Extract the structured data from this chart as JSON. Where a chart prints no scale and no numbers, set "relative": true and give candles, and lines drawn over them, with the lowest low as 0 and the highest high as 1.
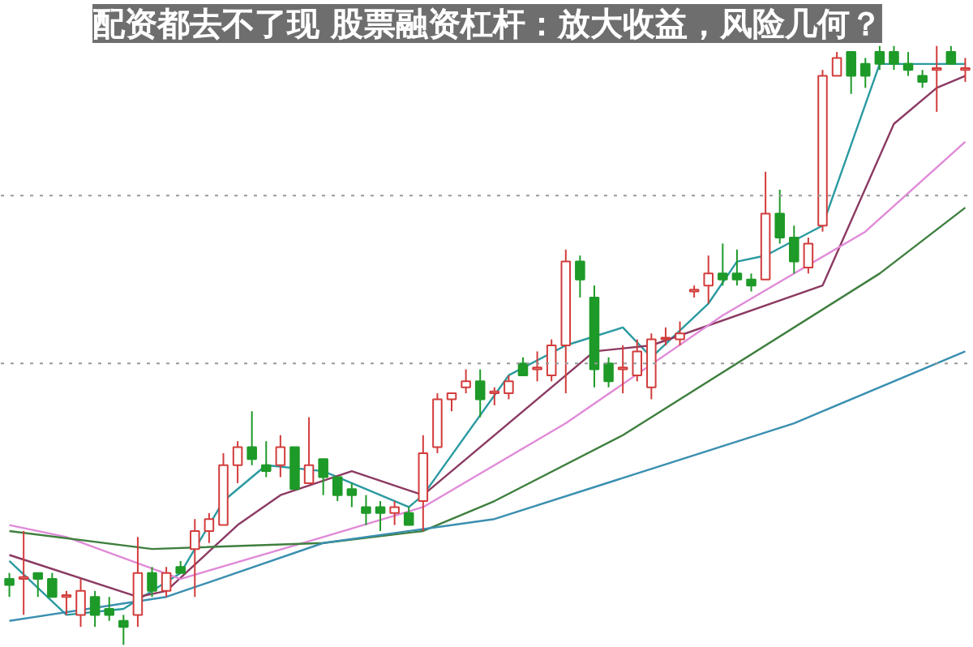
{
  "chart_data": {
    "type": "candlestick",
    "title": "配资都去不了现 股票融资杠杆：放大收益，风险几何？",
    "relative": true,
    "categories": [
      null,
      null,
      null,
      null,
      null,
      null,
      null,
      null,
      null,
      null,
      null,
      null,
      null,
      null,
      null,
      null,
      null,
      null,
      null,
      null,
      null,
      null,
      null,
      null,
      null,
      null,
      null,
      null,
      null,
      null,
      null,
      null,
      null,
      null,
      null,
      null,
      null,
      null,
      null,
      null,
      null,
      null,
      null,
      null,
      null,
      null,
      null,
      null,
      null,
      null,
      null,
      null,
      null,
      null,
      null,
      null,
      null,
      null,
      null,
      null,
      null,
      null,
      null,
      null,
      null,
      null,
      null,
      null
    ],
    "ohlc": [
      [
        0.11,
        0.12,
        0.08,
        0.1
      ],
      [
        0.11,
        0.19,
        0.05,
        0.11
      ],
      [
        0.12,
        0.12,
        0.08,
        0.11
      ],
      [
        0.11,
        0.12,
        0.08,
        0.08
      ],
      [
        0.08,
        0.09,
        0.05,
        0.08
      ],
      [
        0.05,
        0.11,
        0.03,
        0.09
      ],
      [
        0.08,
        0.09,
        0.03,
        0.05
      ],
      [
        0.06,
        0.08,
        0.04,
        0.05
      ],
      [
        0.04,
        0.05,
        0.0,
        0.03
      ],
      [
        0.05,
        0.18,
        0.03,
        0.12
      ],
      [
        0.12,
        0.13,
        0.08,
        0.09
      ],
      [
        0.09,
        0.13,
        0.08,
        0.12
      ],
      [
        0.13,
        0.14,
        0.12,
        0.12
      ],
      [
        0.16,
        0.21,
        0.08,
        0.19
      ],
      [
        0.19,
        0.22,
        0.17,
        0.21
      ],
      [
        0.2,
        0.32,
        0.2,
        0.3
      ],
      [
        0.3,
        0.34,
        0.27,
        0.33
      ],
      [
        0.33,
        0.39,
        0.3,
        0.31
      ],
      [
        0.3,
        0.34,
        0.28,
        0.29
      ],
      [
        0.3,
        0.35,
        0.28,
        0.33
      ],
      [
        0.33,
        0.33,
        0.26,
        0.26
      ],
      [
        0.27,
        0.38,
        0.27,
        0.3
      ],
      [
        0.31,
        0.31,
        0.25,
        0.28
      ],
      [
        0.28,
        0.28,
        0.24,
        0.25
      ],
      [
        0.26,
        0.27,
        0.23,
        0.25
      ],
      [
        0.23,
        0.25,
        0.2,
        0.22
      ],
      [
        0.23,
        0.24,
        0.19,
        0.22
      ],
      [
        0.22,
        0.24,
        0.2,
        0.23
      ],
      [
        0.22,
        0.23,
        0.2,
        0.2
      ],
      [
        0.24,
        0.35,
        0.19,
        0.32
      ],
      [
        0.33,
        0.42,
        0.32,
        0.41
      ],
      [
        0.41,
        0.42,
        0.39,
        0.42
      ],
      [
        0.43,
        0.46,
        0.42,
        0.44
      ],
      [
        0.44,
        0.46,
        0.38,
        0.41
      ],
      [
        0.42,
        0.43,
        0.4,
        0.42
      ],
      [
        0.42,
        0.45,
        0.41,
        0.44
      ],
      [
        0.47,
        0.48,
        0.45,
        0.45
      ],
      [
        0.46,
        0.49,
        0.44,
        0.46
      ],
      [
        0.45,
        0.51,
        0.44,
        0.5
      ],
      [
        0.5,
        0.66,
        0.42,
        0.64
      ],
      [
        0.64,
        0.65,
        0.58,
        0.61
      ],
      [
        0.58,
        0.6,
        0.43,
        0.46
      ],
      [
        0.47,
        0.48,
        0.43,
        0.44
      ],
      [
        0.46,
        0.5,
        0.42,
        0.46
      ],
      [
        0.45,
        0.51,
        0.44,
        0.49
      ],
      [
        0.43,
        0.52,
        0.41,
        0.51
      ],
      [
        0.51,
        0.53,
        0.5,
        0.51
      ],
      [
        0.51,
        0.54,
        0.5,
        0.52
      ],
      [
        0.59,
        0.6,
        0.58,
        0.59
      ],
      [
        0.6,
        0.65,
        0.57,
        0.62
      ],
      [
        0.62,
        0.67,
        0.6,
        0.61
      ],
      [
        0.62,
        0.66,
        0.6,
        0.61
      ],
      [
        0.61,
        0.62,
        0.59,
        0.6
      ],
      [
        0.61,
        0.79,
        0.61,
        0.72
      ],
      [
        0.72,
        0.76,
        0.67,
        0.68
      ],
      [
        0.68,
        0.7,
        0.62,
        0.64
      ],
      [
        0.63,
        0.68,
        0.62,
        0.67
      ],
      [
        0.7,
        0.96,
        0.69,
        0.95
      ],
      [
        0.95,
        0.99,
        0.95,
        0.98
      ],
      [
        0.99,
        0.99,
        0.92,
        0.95
      ],
      [
        0.97,
        0.98,
        0.93,
        0.95
      ],
      [
        0.99,
        1.0,
        0.96,
        0.97
      ],
      [
        0.99,
        1.0,
        0.96,
        0.97
      ],
      [
        0.97,
        0.99,
        0.95,
        0.96
      ],
      [
        0.95,
        0.96,
        0.93,
        0.94
      ],
      [
        0.96,
        1.0,
        0.89,
        0.96
      ],
      [
        0.99,
        1.0,
        0.97,
        0.97
      ],
      [
        0.96,
        0.98,
        0.94,
        0.96
      ]
    ],
    "colors": [
      "#1e9a28",
      "#d23c3c",
      "#1e9a28",
      "#1e9a28",
      "#d23c3c",
      "#d23c3c",
      "#1e9a28",
      "#1e9a28",
      "#1e9a28",
      "#d23c3c",
      "#1e9a28",
      "#d23c3c",
      "#1e9a28",
      "#d23c3c",
      "#d23c3c",
      "#d23c3c",
      "#d23c3c",
      "#1e9a28",
      "#1e9a28",
      "#d23c3c",
      "#1e9a28",
      "#d23c3c",
      "#1e9a28",
      "#1e9a28",
      "#1e9a28",
      "#1e9a28",
      "#1e9a28",
      "#d23c3c",
      "#1e9a28",
      "#d23c3c",
      "#d23c3c",
      "#d23c3c",
      "#d23c3c",
      "#1e9a28",
      "#d23c3c",
      "#d23c3c",
      "#1e9a28",
      "#d23c3c",
      "#d23c3c",
      "#d23c3c",
      "#1e9a28",
      "#1e9a28",
      "#1e9a28",
      "#d23c3c",
      "#d23c3c",
      "#d23c3c",
      "#d23c3c",
      "#d23c3c",
      "#d23c3c",
      "#d23c3c",
      "#1e9a28",
      "#1e9a28",
      "#1e9a28",
      "#d23c3c",
      "#1e9a28",
      "#1e9a28",
      "#d23c3c",
      "#d23c3c",
      "#d23c3c",
      "#1e9a28",
      "#1e9a28",
      "#1e9a28",
      "#1e9a28",
      "#1e9a28",
      "#1e9a28",
      "#d23c3c",
      "#1e9a28",
      "#d23c3c"
    ],
    "series": [
      {
        "type": "line",
        "color": "#2a9aa0",
        "values": [
          0.14,
          null,
          null,
          null,
          0.05,
          null,
          null,
          null,
          0.06,
          null,
          null,
          null,
          0.12,
          null,
          null,
          0.24,
          null,
          null,
          0.3,
          null,
          null,
          null,
          0.29,
          null,
          null,
          null,
          null,
          null,
          0.23,
          0.25,
          null,
          null,
          null,
          null,
          null,
          0.45,
          null,
          null,
          null,
          0.5,
          null,
          null,
          null,
          0.53,
          null,
          0.48,
          null,
          null,
          null,
          0.57,
          null,
          0.64,
          null,
          0.65,
          null,
          null,
          null,
          0.7,
          null,
          null,
          null,
          0.97,
          null,
          null,
          null,
          null,
          null,
          0.97
        ]
      },
      {
        "type": "line",
        "color": "#8b3a62",
        "values": [
          0.15,
          null,
          null,
          null,
          null,
          null,
          null,
          null,
          null,
          0.08,
          null,
          0.09,
          null,
          null,
          null,
          null,
          0.2,
          null,
          null,
          0.25,
          null,
          null,
          null,
          null,
          0.29,
          null,
          null,
          null,
          null,
          0.25,
          null,
          null,
          null,
          null,
          null,
          null,
          null,
          null,
          null,
          null,
          null,
          0.49,
          null,
          null,
          null,
          0.5,
          null,
          null,
          null,
          null,
          null,
          null,
          null,
          null,
          null,
          null,
          null,
          0.6,
          null,
          null,
          null,
          null,
          0.87,
          null,
          null,
          0.93,
          null,
          0.95
        ]
      },
      {
        "type": "line",
        "color": "#e08ad8",
        "values": [
          0.2,
          null,
          null,
          null,
          0.18,
          null,
          null,
          null,
          null,
          null,
          null,
          null,
          0.11,
          null,
          null,
          null,
          null,
          null,
          null,
          null,
          null,
          null,
          0.18,
          null,
          null,
          null,
          null,
          null,
          null,
          0.23,
          null,
          null,
          null,
          null,
          null,
          null,
          null,
          null,
          null,
          0.37,
          null,
          null,
          null,
          null,
          null,
          null,
          null,
          null,
          null,
          null,
          0.55,
          null,
          null,
          null,
          null,
          null,
          null,
          null,
          null,
          null,
          0.69,
          null,
          null,
          null,
          null,
          null,
          null,
          0.84
        ]
      },
      {
        "type": "line",
        "color": "#3f7f3f",
        "values": [
          0.19,
          null,
          null,
          null,
          null,
          null,
          null,
          null,
          null,
          null,
          0.16,
          null,
          null,
          null,
          null,
          null,
          null,
          null,
          null,
          null,
          null,
          null,
          0.17,
          null,
          null,
          null,
          null,
          null,
          null,
          0.19,
          null,
          null,
          null,
          null,
          0.24,
          null,
          null,
          null,
          null,
          null,
          null,
          null,
          null,
          0.35,
          null,
          null,
          null,
          null,
          null,
          null,
          null,
          null,
          null,
          null,
          null,
          null,
          null,
          null,
          null,
          null,
          null,
          0.62,
          null,
          null,
          null,
          null,
          null,
          0.73
        ]
      },
      {
        "type": "line",
        "color": "#3a8fb0",
        "values": [
          0.04,
          null,
          null,
          null,
          null,
          null,
          null,
          null,
          null,
          null,
          null,
          0.08,
          null,
          null,
          null,
          null,
          null,
          null,
          null,
          null,
          null,
          null,
          0.17,
          null,
          null,
          null,
          null,
          null,
          null,
          null,
          null,
          null,
          null,
          null,
          0.21,
          null,
          null,
          null,
          null,
          null,
          null,
          null,
          null,
          null,
          null,
          null,
          null,
          null,
          null,
          null,
          null,
          null,
          null,
          null,
          null,
          0.37,
          null,
          null,
          null,
          null,
          null,
          null,
          null,
          null,
          null,
          null,
          null,
          0.49
        ]
      }
    ],
    "ref_lines": [
      {
        "axis": "y",
        "value": 0.75,
        "color": "#999999",
        "line_style": "dotted"
      },
      {
        "axis": "y",
        "value": 0.47,
        "color": "#999999",
        "line_style": "dotted"
      }
    ],
    "grid": false,
    "tick_labels": false
  }
}
